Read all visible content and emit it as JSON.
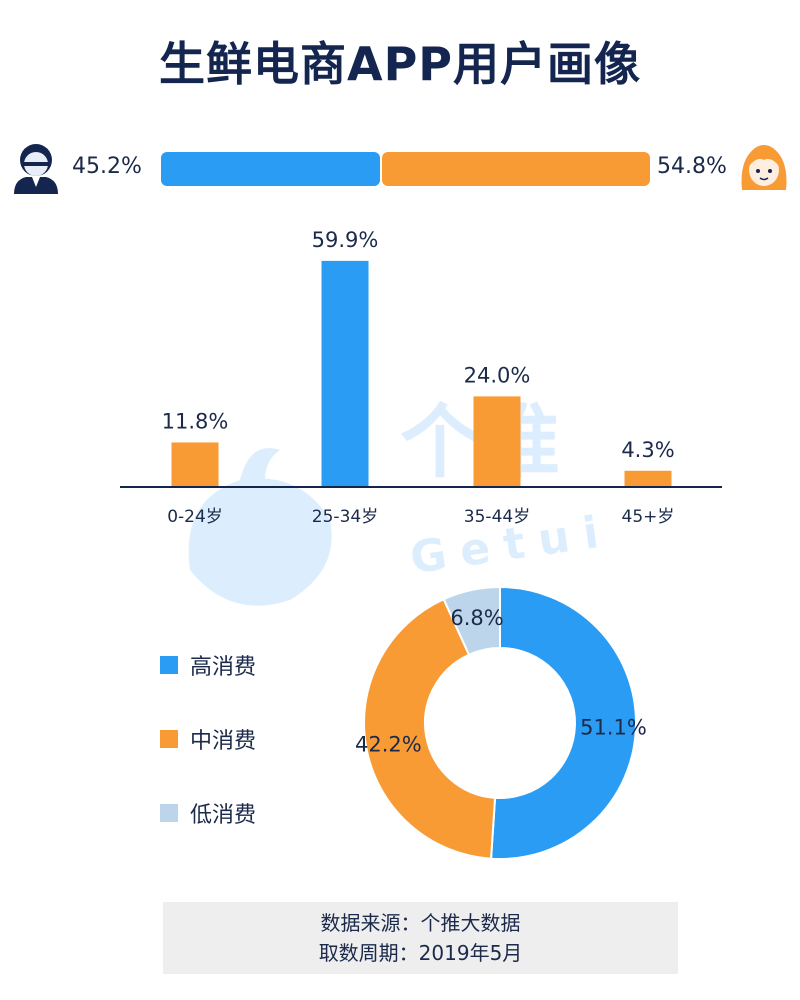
{
  "title": "生鲜电商APP用户画像",
  "colors": {
    "blue": "#2a9cf4",
    "orange": "#f99b34",
    "light": "#bcd5ea",
    "navy": "#14254f"
  },
  "gender": {
    "male_label": "45.2%",
    "male_value": 45.2,
    "male_icon": "male-avatar-icon",
    "female_label": "54.8%",
    "female_value": 54.8,
    "female_icon": "female-avatar-icon"
  },
  "watermark": {
    "text": "个推",
    "latin": "Getui"
  },
  "chart_data": [
    {
      "type": "bar",
      "categories": [
        "0-24岁",
        "25-34岁",
        "35-44岁",
        "45+岁"
      ],
      "values": [
        11.8,
        59.9,
        24.0,
        4.3
      ],
      "labels": [
        "11.8%",
        "59.9%",
        "24.0%",
        "4.3%"
      ],
      "colors": [
        "#f99b34",
        "#2a9cf4",
        "#f99b34",
        "#f99b34"
      ],
      "ylim": [
        0,
        70
      ],
      "grid": false
    },
    {
      "type": "pie",
      "donut": true,
      "categories": [
        "高消费",
        "中消费",
        "低消费"
      ],
      "values": [
        51.1,
        42.2,
        6.8
      ],
      "labels": [
        "51.1%",
        "42.2%",
        "6.8%"
      ],
      "colors": [
        "#2a9cf4",
        "#f99b34",
        "#bcd5ea"
      ],
      "legend_position": "left"
    }
  ],
  "footer": {
    "line1": "数据来源：个推大数据",
    "line2": "取数周期：2019年5月"
  }
}
